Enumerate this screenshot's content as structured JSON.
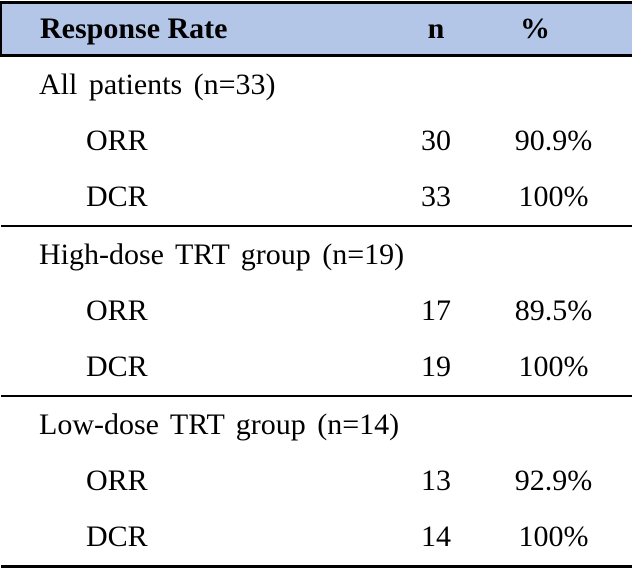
{
  "colors": {
    "header_bg": "#b4c6e7",
    "border": "#000000",
    "text": "#000000",
    "page_bg": "#ffffff"
  },
  "table": {
    "header": {
      "label": "Response Rate",
      "n": "n",
      "pct": "%"
    },
    "sections": [
      {
        "group_label": "All patients (n=33)",
        "rows": [
          {
            "label": "ORR",
            "n": "30",
            "pct": "90.9%"
          },
          {
            "label": "DCR",
            "n": "33",
            "pct": "100%"
          }
        ]
      },
      {
        "group_label": "High-dose TRT group (n=19)",
        "rows": [
          {
            "label": "ORR",
            "n": "17",
            "pct": "89.5%"
          },
          {
            "label": "DCR",
            "n": "19",
            "pct": "100%"
          }
        ]
      },
      {
        "group_label": "Low-dose TRT group (n=14)",
        "rows": [
          {
            "label": "ORR",
            "n": "13",
            "pct": "92.9%"
          },
          {
            "label": "DCR",
            "n": "14",
            "pct": "100%"
          }
        ]
      }
    ]
  }
}
